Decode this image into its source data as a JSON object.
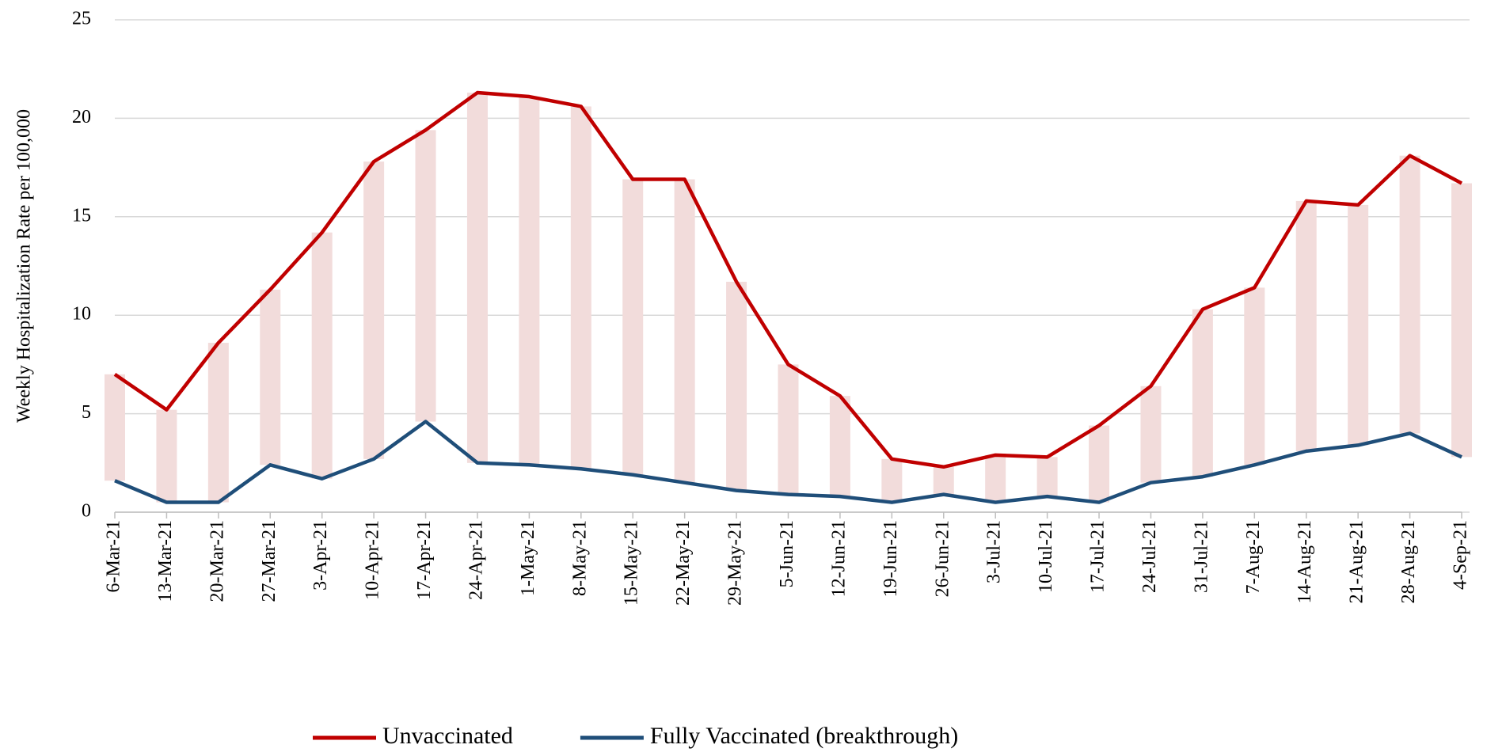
{
  "chart_data": {
    "type": "line",
    "y_label": "Weekly Hospitalization Rate per 100,000",
    "categories": [
      "6-Mar-21",
      "13-Mar-21",
      "20-Mar-21",
      "27-Mar-21",
      "3-Apr-21",
      "10-Apr-21",
      "17-Apr-21",
      "24-Apr-21",
      "1-May-21",
      "8-May-21",
      "15-May-21",
      "22-May-21",
      "29-May-21",
      "5-Jun-21",
      "12-Jun-21",
      "19-Jun-21",
      "26-Jun-21",
      "3-Jul-21",
      "10-Jul-21",
      "17-Jul-21",
      "24-Jul-21",
      "31-Jul-21",
      "7-Aug-21",
      "14-Aug-21",
      "21-Aug-21",
      "28-Aug-21",
      "4-Sep-21"
    ],
    "series": [
      {
        "name": "Unvaccinated",
        "color": "#c00000",
        "values": [
          7.0,
          5.2,
          8.6,
          11.3,
          14.2,
          17.8,
          19.4,
          21.3,
          21.1,
          20.6,
          16.9,
          16.9,
          11.7,
          7.5,
          5.9,
          2.7,
          2.3,
          2.9,
          2.8,
          4.4,
          6.4,
          10.3,
          11.4,
          15.8,
          15.6,
          18.1,
          16.7
        ]
      },
      {
        "name": "Fully Vaccinated (breakthrough)",
        "color": "#1f4e79",
        "values": [
          1.6,
          0.5,
          0.5,
          2.4,
          1.7,
          2.7,
          4.6,
          2.5,
          2.4,
          2.2,
          1.9,
          1.5,
          1.1,
          0.9,
          0.8,
          0.5,
          0.9,
          0.5,
          0.8,
          0.5,
          1.5,
          1.8,
          2.4,
          3.1,
          3.4,
          4.0,
          2.8
        ]
      }
    ],
    "range_bar_color": "#f2dcdb",
    "ylim": [
      0,
      25
    ],
    "yticks": [
      0,
      5,
      10,
      15,
      20,
      25
    ],
    "grid": true,
    "legend": "bottom"
  }
}
